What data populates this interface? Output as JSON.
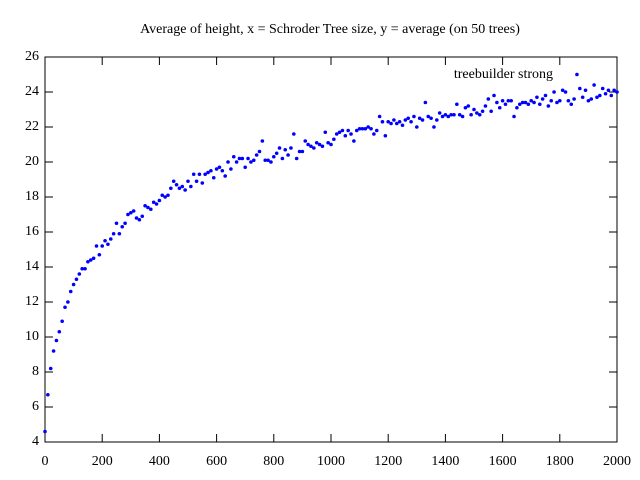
{
  "chart_data": {
    "type": "scatter",
    "title": "Average of height, x = Schroder Tree size, y = average (on 50 trees)",
    "x": [
      0,
      10,
      20,
      30,
      40,
      50,
      60,
      70,
      80,
      90,
      100,
      110,
      120,
      130,
      140,
      150,
      160,
      170,
      180,
      190,
      200,
      210,
      220,
      230,
      240,
      250,
      260,
      270,
      280,
      290,
      300,
      310,
      320,
      330,
      340,
      350,
      360,
      370,
      380,
      390,
      400,
      410,
      420,
      430,
      440,
      450,
      460,
      470,
      480,
      490,
      500,
      510,
      520,
      530,
      540,
      550,
      560,
      570,
      580,
      590,
      600,
      610,
      620,
      630,
      640,
      650,
      660,
      670,
      680,
      690,
      700,
      710,
      720,
      730,
      740,
      750,
      760,
      770,
      780,
      790,
      800,
      810,
      820,
      830,
      840,
      850,
      860,
      870,
      880,
      890,
      900,
      910,
      920,
      930,
      940,
      950,
      960,
      970,
      980,
      990,
      1000,
      1010,
      1020,
      1030,
      1040,
      1050,
      1060,
      1070,
      1080,
      1090,
      1100,
      1110,
      1120,
      1130,
      1140,
      1150,
      1160,
      1170,
      1180,
      1190,
      1200,
      1210,
      1220,
      1230,
      1240,
      1250,
      1260,
      1270,
      1280,
      1290,
      1300,
      1310,
      1320,
      1330,
      1340,
      1350,
      1360,
      1370,
      1380,
      1390,
      1400,
      1410,
      1420,
      1430,
      1440,
      1450,
      1460,
      1470,
      1480,
      1490,
      1500,
      1510,
      1520,
      1530,
      1540,
      1550,
      1560,
      1570,
      1580,
      1590,
      1600,
      1610,
      1620,
      1630,
      1640,
      1650,
      1660,
      1670,
      1680,
      1690,
      1700,
      1710,
      1720,
      1730,
      1740,
      1750,
      1760,
      1770,
      1780,
      1790,
      1800,
      1810,
      1820,
      1830,
      1840,
      1850,
      1860,
      1870,
      1880,
      1890,
      1900,
      1910,
      1920,
      1930,
      1940,
      1950,
      1960,
      1970,
      1980,
      1990,
      2000
    ],
    "series": [
      {
        "name": "treebuilder strong",
        "color": "#0000ff",
        "values": [
          4.6,
          6.7,
          8.2,
          9.2,
          9.8,
          10.3,
          10.9,
          11.7,
          12.0,
          12.6,
          13.0,
          13.3,
          13.6,
          13.9,
          13.9,
          14.3,
          14.4,
          14.5,
          15.2,
          14.7,
          15.2,
          15.5,
          15.3,
          15.6,
          15.9,
          16.5,
          15.9,
          16.3,
          16.5,
          17.0,
          17.1,
          17.2,
          16.8,
          16.7,
          16.9,
          17.5,
          17.4,
          17.3,
          17.7,
          17.6,
          17.8,
          18.1,
          18.0,
          18.1,
          18.5,
          18.9,
          18.7,
          18.5,
          18.6,
          18.4,
          18.9,
          18.6,
          19.3,
          18.9,
          19.3,
          18.8,
          19.3,
          19.4,
          19.5,
          19.1,
          19.6,
          19.7,
          19.5,
          19.2,
          20.0,
          19.6,
          20.3,
          20.0,
          20.2,
          20.2,
          19.7,
          20.2,
          20.0,
          20.1,
          20.4,
          20.6,
          21.2,
          20.1,
          20.1,
          20.0,
          20.3,
          20.5,
          20.8,
          20.2,
          20.7,
          20.4,
          20.8,
          21.6,
          20.2,
          20.6,
          20.6,
          21.2,
          21.0,
          20.9,
          20.8,
          21.1,
          21.0,
          20.9,
          21.7,
          21.1,
          21.0,
          21.3,
          21.6,
          21.7,
          21.8,
          21.5,
          21.8,
          21.6,
          21.2,
          21.8,
          21.9,
          21.9,
          21.9,
          22.0,
          21.9,
          21.6,
          21.8,
          22.6,
          22.3,
          21.5,
          22.3,
          22.2,
          22.4,
          22.2,
          22.3,
          22.1,
          22.4,
          22.5,
          22.3,
          22.6,
          22.0,
          22.5,
          22.4,
          23.4,
          22.6,
          22.5,
          22.0,
          22.4,
          22.8,
          22.6,
          22.7,
          22.6,
          22.7,
          22.7,
          23.3,
          22.7,
          22.6,
          23.1,
          23.2,
          22.7,
          23.0,
          22.8,
          22.7,
          22.9,
          23.2,
          23.6,
          22.9,
          23.8,
          23.4,
          23.1,
          23.5,
          23.3,
          23.5,
          23.5,
          22.6,
          23.1,
          23.3,
          23.4,
          23.4,
          23.3,
          23.5,
          23.4,
          23.7,
          23.3,
          23.6,
          23.8,
          23.2,
          23.5,
          24.0,
          23.4,
          23.5,
          24.1,
          24.0,
          23.5,
          23.3,
          23.6,
          25.0,
          24.2,
          23.7,
          24.1,
          23.5,
          23.6,
          24.4,
          23.7,
          23.8,
          24.2,
          23.9,
          24.1,
          23.8,
          24.1,
          24.0
        ]
      }
    ],
    "xlim": [
      0,
      2000
    ],
    "xticks": [
      0,
      200,
      400,
      600,
      800,
      1000,
      1200,
      1400,
      1600,
      1800,
      2000
    ],
    "ylim": [
      4,
      26
    ],
    "yticks": [
      4,
      6,
      8,
      10,
      12,
      14,
      16,
      18,
      20,
      22,
      24,
      26
    ],
    "grid": false,
    "legend": "top-right"
  }
}
